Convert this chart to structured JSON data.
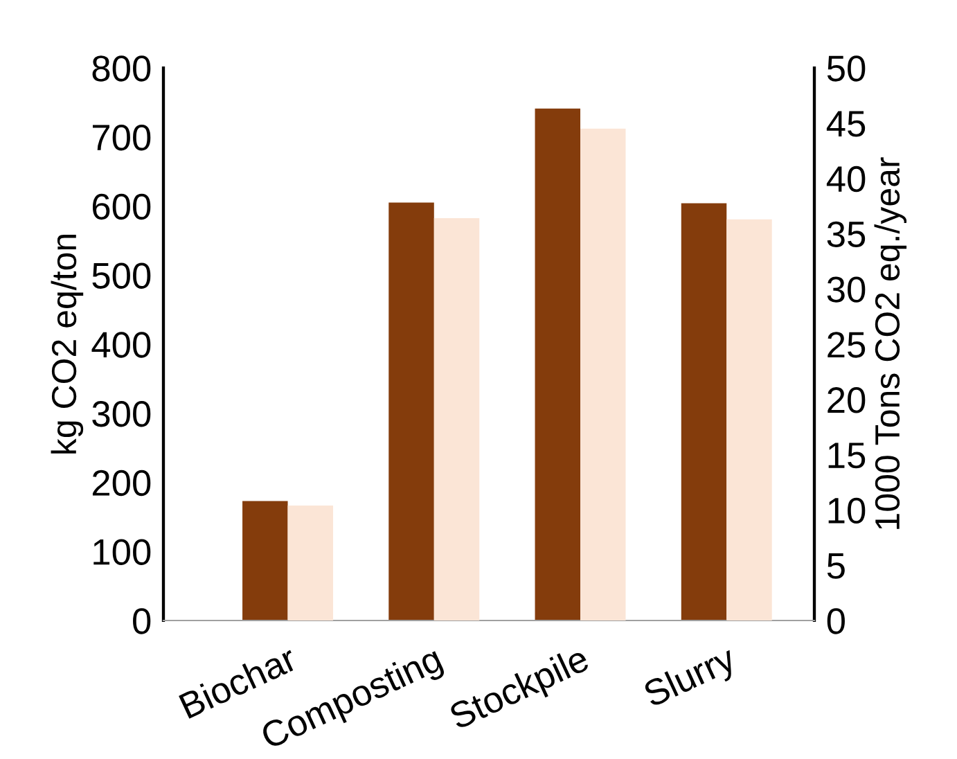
{
  "chart_data": {
    "type": "bar",
    "ylabel": "kg CO2 eq/ton",
    "y2label": "1000 Tons CO2 eq./year",
    "categories": [
      "Biochar",
      "Composting",
      "Stockpile",
      "Slurry"
    ],
    "series": [
      {
        "color": "#843c0c",
        "values": [
          173,
          605,
          741,
          604
        ]
      },
      {
        "color": "#fbe5d6",
        "values": [
          10.4,
          36.4,
          44.5,
          36.3
        ],
        "axis": "y2"
      }
    ],
    "ylim": [
      0,
      800
    ],
    "yticks": [
      0,
      100,
      200,
      300,
      400,
      500,
      600,
      700,
      800
    ],
    "y2lim": [
      0,
      50
    ],
    "y2ticks": [
      0,
      5,
      10,
      15,
      20,
      25,
      30,
      35,
      40,
      45,
      50
    ],
    "grid": false,
    "legend": false
  }
}
